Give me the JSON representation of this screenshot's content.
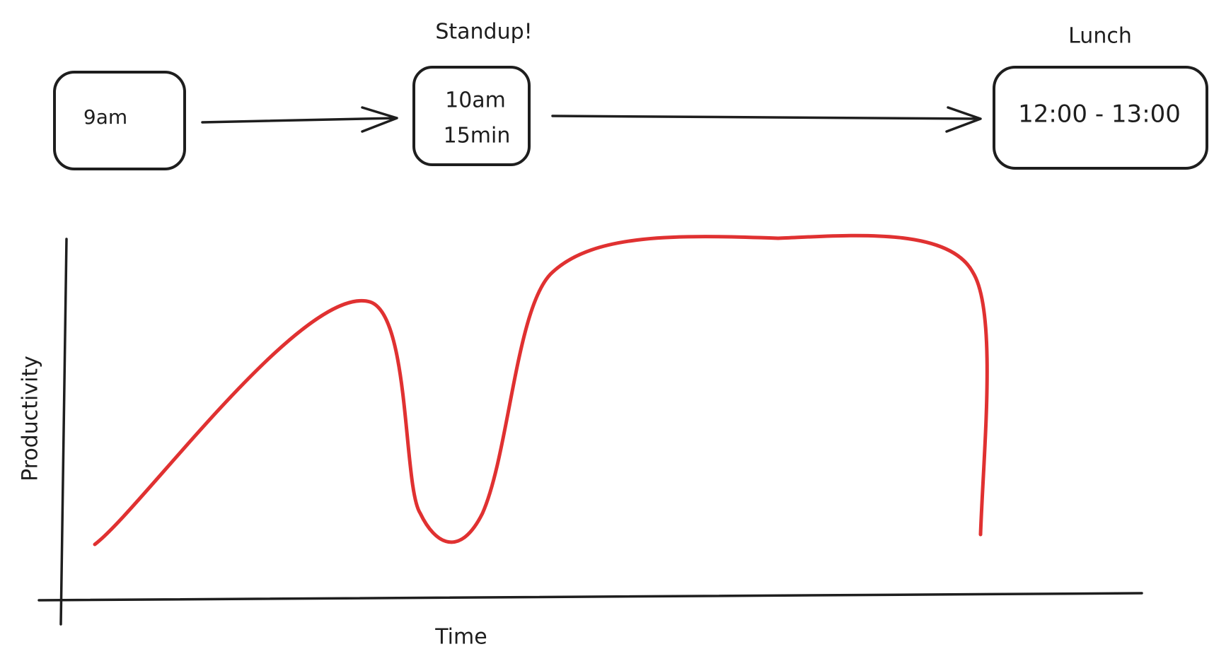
{
  "nodes": [
    {
      "lines": [
        "9am"
      ]
    },
    {
      "caption": "Standup!",
      "lines": [
        "10am",
        "15min"
      ]
    },
    {
      "caption": "Lunch",
      "lines": [
        "12:00 - 13:00"
      ]
    }
  ],
  "chart": {
    "y_label": "Productivity",
    "x_label": "Time"
  }
}
